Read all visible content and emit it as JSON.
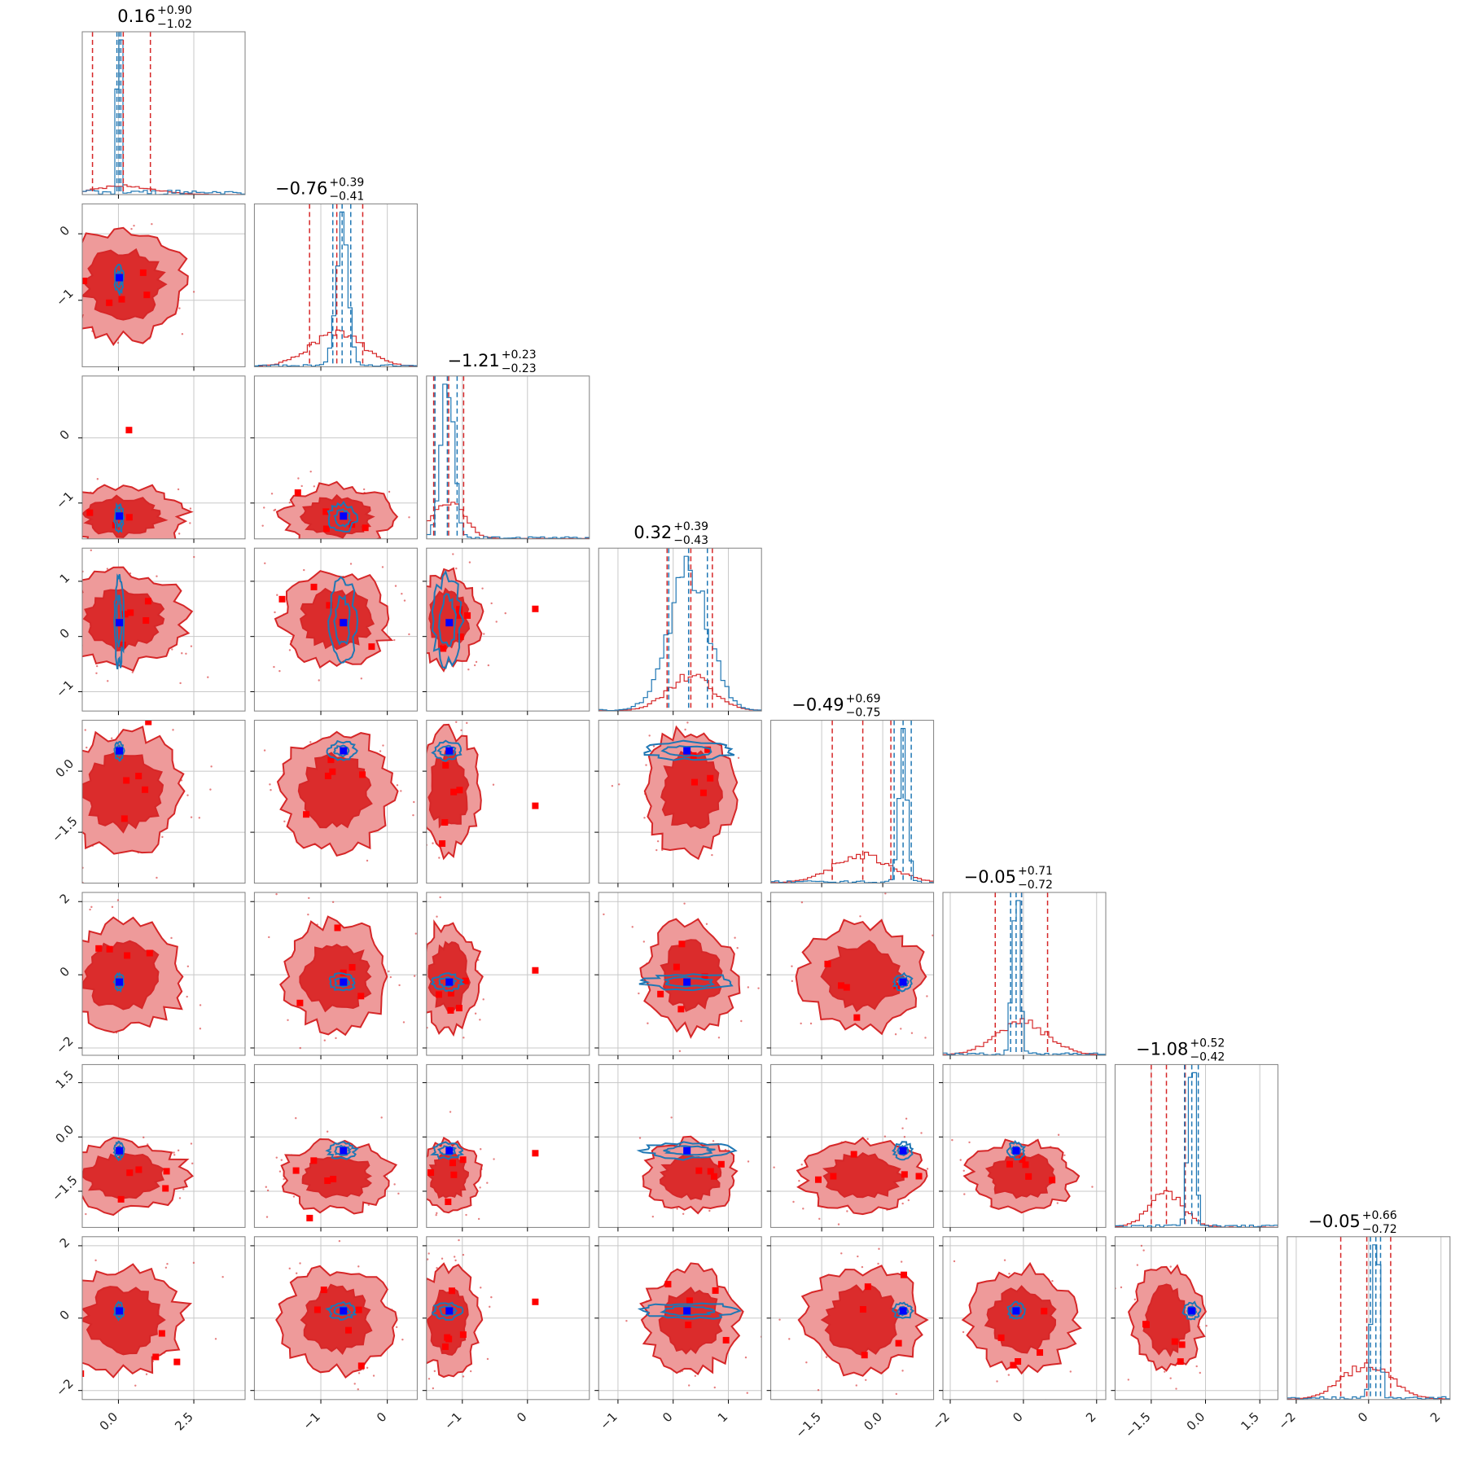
{
  "chart_data": {
    "type": "corner",
    "n_params": 8,
    "colors": {
      "red_line": "#d62728",
      "red_fill_dark": "#db2c2c",
      "red_fill_light": "#ee9a9a",
      "blue_line": "#1f77b4",
      "truth_marker": "#0000ff",
      "red_marker": "#ff0000",
      "grid": "#c8c8c8",
      "frame": "#7f7f7f"
    },
    "grid": true,
    "params": [
      {
        "index": 0,
        "range": [
          -1.2,
          4.2
        ],
        "median": 0.16,
        "plus": 0.9,
        "minus": 1.02,
        "title_main": "0.16",
        "title_plus": "+0.90",
        "title_minus": "−1.02",
        "ticks": [
          0.0,
          2.5
        ],
        "tick_labels": [
          "0.0",
          "2.5"
        ],
        "red_quantiles": [
          -0.86,
          0.16,
          1.06
        ],
        "blue_quantiles": [
          -0.05,
          0.02,
          0.08
        ],
        "truth": 0.03,
        "red_width": 1.0,
        "blue_width": 0.05,
        "red_center": 0.16,
        "blue_center": 0.02
      },
      {
        "index": 1,
        "range": [
          -2.0,
          0.45
        ],
        "median": -0.76,
        "plus": 0.39,
        "minus": 0.41,
        "title_main": "−0.76",
        "title_plus": "+0.39",
        "title_minus": "−0.41",
        "ticks": [
          -1,
          0
        ],
        "tick_labels": [
          "−1",
          "0"
        ],
        "red_quantiles": [
          -1.17,
          -0.76,
          -0.37
        ],
        "blue_quantiles": [
          -0.82,
          -0.68,
          -0.55
        ],
        "truth": -0.66,
        "red_width": 0.4,
        "blue_width": 0.09,
        "red_center": -0.76,
        "blue_center": -0.68
      },
      {
        "index": 2,
        "range": [
          -1.55,
          0.95
        ],
        "median": -1.21,
        "plus": 0.23,
        "minus": 0.23,
        "title_main": "−1.21",
        "title_plus": "+0.23",
        "title_minus": "−0.23",
        "ticks": [
          -1,
          0
        ],
        "tick_labels": [
          "−1",
          "0"
        ],
        "red_quantiles": [
          -1.44,
          -1.21,
          -0.98
        ],
        "blue_quantiles": [
          -1.42,
          -1.23,
          -1.08
        ],
        "truth": -1.2,
        "red_width": 0.23,
        "blue_width": 0.1,
        "red_center": -1.21,
        "blue_center": -1.23
      },
      {
        "index": 3,
        "range": [
          -1.35,
          1.6
        ],
        "median": 0.32,
        "plus": 0.39,
        "minus": 0.43,
        "title_main": "0.32",
        "title_plus": "+0.39",
        "title_minus": "−0.43",
        "ticks": [
          -1,
          0,
          1
        ],
        "tick_labels": [
          "−1",
          "0",
          "1"
        ],
        "red_quantiles": [
          -0.11,
          0.32,
          0.71
        ],
        "blue_quantiles": [
          -0.08,
          0.28,
          0.62
        ],
        "truth": 0.25,
        "red_width": 0.41,
        "blue_width": 0.36,
        "red_center": 0.32,
        "blue_center": 0.28
      },
      {
        "index": 4,
        "range": [
          -2.75,
          1.25
        ],
        "median": -0.49,
        "plus": 0.69,
        "minus": 0.75,
        "title_main": "−0.49",
        "title_plus": "+0.69",
        "title_minus": "−0.75",
        "ticks": [
          -1.5,
          0.0
        ],
        "tick_labels": [
          "−1.5",
          "0.0"
        ],
        "red_quantiles": [
          -1.24,
          -0.49,
          0.2
        ],
        "blue_quantiles": [
          0.28,
          0.5,
          0.7
        ],
        "truth": 0.5,
        "red_width": 0.72,
        "blue_width": 0.1,
        "red_center": -0.49,
        "blue_center": 0.5
      },
      {
        "index": 5,
        "range": [
          -2.2,
          2.25
        ],
        "median": -0.05,
        "plus": 0.71,
        "minus": 0.72,
        "title_main": "−0.05",
        "title_plus": "+0.71",
        "title_minus": "−0.72",
        "ticks": [
          -2,
          0,
          2
        ],
        "tick_labels": [
          "−2",
          "0",
          "2"
        ],
        "red_quantiles": [
          -0.77,
          -0.05,
          0.66
        ],
        "blue_quantiles": [
          -0.35,
          -0.2,
          -0.05
        ],
        "truth": -0.2,
        "red_width": 0.71,
        "blue_width": 0.1,
        "red_center": -0.05,
        "blue_center": -0.2
      },
      {
        "index": 6,
        "range": [
          -2.5,
          2.0
        ],
        "median": -1.08,
        "plus": 0.52,
        "minus": 0.42,
        "title_main": "−1.08",
        "title_plus": "+0.52",
        "title_minus": "−0.42",
        "ticks": [
          -1.5,
          0.0,
          1.5
        ],
        "tick_labels": [
          "−1.5",
          "0.0",
          "1.5"
        ],
        "red_quantiles": [
          -1.5,
          -1.08,
          -0.56
        ],
        "blue_quantiles": [
          -0.58,
          -0.38,
          -0.2
        ],
        "truth": -0.38,
        "red_width": 0.47,
        "blue_width": 0.1,
        "red_center": -1.08,
        "blue_center": -0.38
      },
      {
        "index": 7,
        "range": [
          -2.25,
          2.25
        ],
        "median": -0.05,
        "plus": 0.66,
        "minus": 0.72,
        "title_main": "−0.05",
        "title_plus": "+0.66",
        "title_minus": "−0.72",
        "ticks": [
          -2,
          0,
          2
        ],
        "tick_labels": [
          "−2",
          "0",
          "2"
        ],
        "red_quantiles": [
          -0.77,
          -0.05,
          0.61
        ],
        "blue_quantiles": [
          0.05,
          0.2,
          0.33
        ],
        "truth": 0.2,
        "red_width": 0.69,
        "blue_width": 0.1,
        "red_center": -0.05,
        "blue_center": 0.2
      }
    ],
    "outlier_points": [
      {
        "x_param": 0,
        "y_param": 2,
        "x": 0.35,
        "y": 0.12
      },
      {
        "x_param": 2,
        "y_param": 3,
        "x": 0.12,
        "y": 0.5
      },
      {
        "x_param": 2,
        "y_param": 4,
        "x": 0.12,
        "y": -0.85
      },
      {
        "x_param": 2,
        "y_param": 5,
        "x": 0.12,
        "y": 0.12
      },
      {
        "x_param": 2,
        "y_param": 6,
        "x": 0.12,
        "y": -0.45
      },
      {
        "x_param": 2,
        "y_param": 7,
        "x": 0.12,
        "y": 0.45
      }
    ]
  }
}
